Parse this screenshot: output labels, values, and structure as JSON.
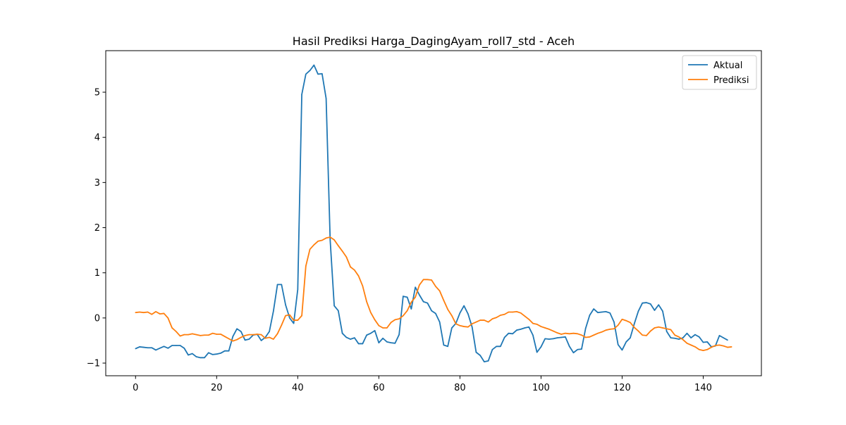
{
  "chart_data": {
    "type": "line",
    "title": "Hasil Prediksi Harga_DagingAyam_roll7_std - Aceh",
    "xlabel": "",
    "ylabel": "",
    "xlim": [
      -7.35,
      154.35
    ],
    "ylim": [
      -1.28,
      5.92
    ],
    "xticks": [
      0,
      20,
      40,
      60,
      80,
      100,
      120,
      140
    ],
    "yticks": [
      -1,
      0,
      1,
      2,
      3,
      4,
      5
    ],
    "ytick_labels": [
      "−1",
      "0",
      "1",
      "2",
      "3",
      "4",
      "5"
    ],
    "grid": false,
    "legend_position": "top-right",
    "series": [
      {
        "name": "Aktual",
        "color": "#1f77b4",
        "values": [
          -0.68,
          -0.64,
          -0.65,
          -0.66,
          -0.66,
          -0.71,
          -0.67,
          -0.63,
          -0.67,
          -0.61,
          -0.61,
          -0.61,
          -0.67,
          -0.82,
          -0.79,
          -0.86,
          -0.88,
          -0.88,
          -0.77,
          -0.81,
          -0.8,
          -0.78,
          -0.73,
          -0.73,
          -0.41,
          -0.24,
          -0.3,
          -0.49,
          -0.47,
          -0.38,
          -0.36,
          -0.5,
          -0.43,
          -0.3,
          0.15,
          0.74,
          0.74,
          0.29,
          0.0,
          -0.12,
          0.63,
          4.95,
          5.4,
          5.48,
          5.6,
          5.4,
          5.41,
          4.86,
          1.72,
          0.27,
          0.16,
          -0.34,
          -0.43,
          -0.47,
          -0.44,
          -0.57,
          -0.57,
          -0.38,
          -0.34,
          -0.28,
          -0.55,
          -0.45,
          -0.53,
          -0.55,
          -0.56,
          -0.37,
          0.48,
          0.46,
          0.2,
          0.68,
          0.51,
          0.36,
          0.33,
          0.16,
          0.1,
          -0.09,
          -0.6,
          -0.63,
          -0.22,
          -0.12,
          0.11,
          0.27,
          0.09,
          -0.2,
          -0.76,
          -0.83,
          -0.97,
          -0.95,
          -0.7,
          -0.63,
          -0.63,
          -0.43,
          -0.34,
          -0.35,
          -0.27,
          -0.25,
          -0.22,
          -0.2,
          -0.38,
          -0.76,
          -0.64,
          -0.46,
          -0.47,
          -0.46,
          -0.44,
          -0.43,
          -0.42,
          -0.63,
          -0.77,
          -0.7,
          -0.69,
          -0.23,
          0.06,
          0.2,
          0.12,
          0.13,
          0.14,
          0.11,
          -0.09,
          -0.59,
          -0.71,
          -0.53,
          -0.44,
          -0.13,
          0.15,
          0.33,
          0.34,
          0.31,
          0.17,
          0.29,
          0.15,
          -0.3,
          -0.44,
          -0.45,
          -0.47,
          -0.44,
          -0.34,
          -0.44,
          -0.37,
          -0.42,
          -0.54,
          -0.53,
          -0.64,
          -0.62,
          -0.39,
          -0.44,
          -0.49
        ]
      },
      {
        "name": "Prediksi",
        "color": "#ff7f0e",
        "values": [
          0.12,
          0.13,
          0.12,
          0.13,
          0.08,
          0.14,
          0.09,
          0.1,
          0.0,
          -0.22,
          -0.3,
          -0.4,
          -0.37,
          -0.37,
          -0.35,
          -0.37,
          -0.39,
          -0.38,
          -0.38,
          -0.34,
          -0.36,
          -0.36,
          -0.41,
          -0.46,
          -0.51,
          -0.48,
          -0.43,
          -0.39,
          -0.37,
          -0.37,
          -0.36,
          -0.37,
          -0.45,
          -0.43,
          -0.47,
          -0.35,
          -0.16,
          0.05,
          0.07,
          -0.05,
          -0.05,
          0.05,
          1.15,
          1.52,
          1.62,
          1.7,
          1.72,
          1.77,
          1.79,
          1.73,
          1.6,
          1.48,
          1.35,
          1.13,
          1.06,
          0.93,
          0.71,
          0.36,
          0.12,
          -0.04,
          -0.17,
          -0.22,
          -0.22,
          -0.1,
          -0.04,
          -0.02,
          0.05,
          0.16,
          0.35,
          0.46,
          0.73,
          0.85,
          0.85,
          0.84,
          0.7,
          0.6,
          0.39,
          0.19,
          0.05,
          -0.13,
          -0.17,
          -0.19,
          -0.2,
          -0.13,
          -0.09,
          -0.05,
          -0.05,
          -0.09,
          -0.02,
          0.01,
          0.06,
          0.08,
          0.13,
          0.13,
          0.14,
          0.11,
          0.04,
          -0.03,
          -0.12,
          -0.14,
          -0.19,
          -0.22,
          -0.25,
          -0.29,
          -0.33,
          -0.36,
          -0.34,
          -0.35,
          -0.34,
          -0.35,
          -0.38,
          -0.43,
          -0.42,
          -0.38,
          -0.34,
          -0.31,
          -0.27,
          -0.25,
          -0.24,
          -0.16,
          -0.03,
          -0.06,
          -0.1,
          -0.21,
          -0.29,
          -0.38,
          -0.39,
          -0.29,
          -0.22,
          -0.2,
          -0.22,
          -0.24,
          -0.26,
          -0.38,
          -0.42,
          -0.48,
          -0.56,
          -0.6,
          -0.64,
          -0.7,
          -0.72,
          -0.7,
          -0.65,
          -0.61,
          -0.6,
          -0.62,
          -0.65,
          -0.64
        ]
      }
    ]
  }
}
